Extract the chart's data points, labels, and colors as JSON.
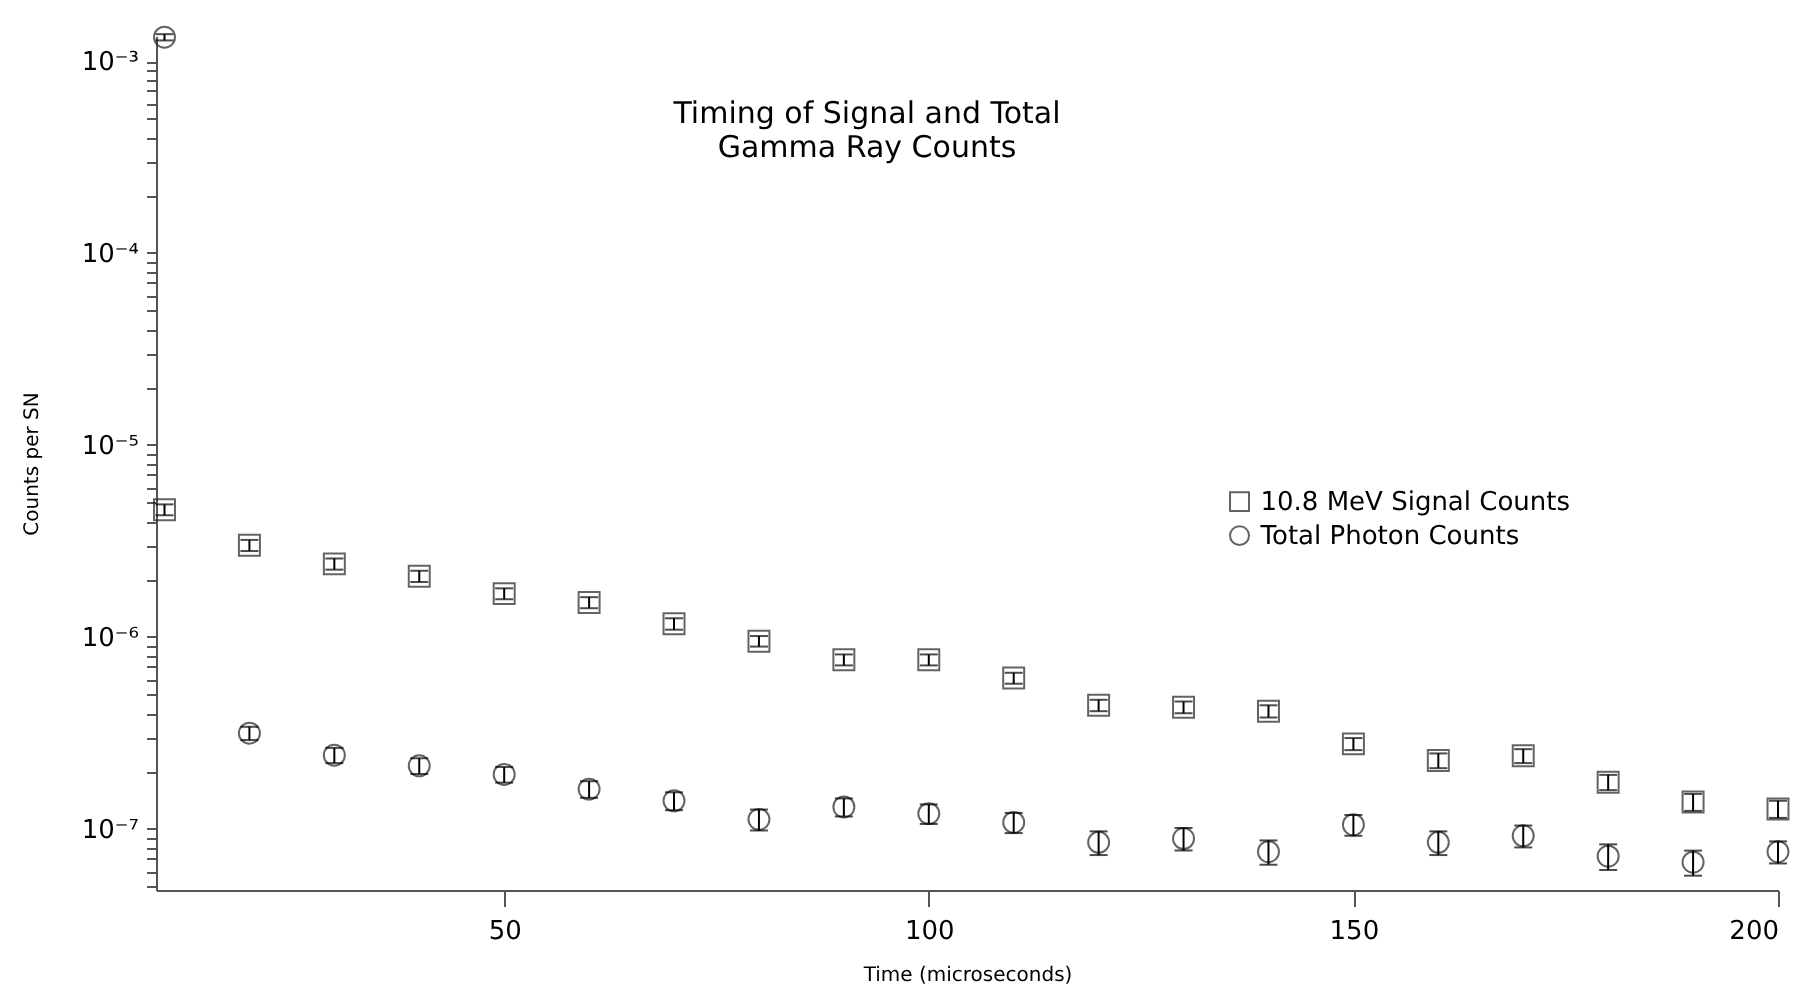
{
  "chart_data": {
    "type": "scatter",
    "title": [
      "Timing of Signal and Total",
      "Gamma Ray Counts"
    ],
    "xlabel": "Time (microseconds)",
    "ylabel": "Counts per SN",
    "x": [
      10,
      20,
      30,
      40,
      50,
      60,
      70,
      80,
      90,
      100,
      110,
      120,
      130,
      140,
      150,
      160,
      170,
      180,
      190,
      200
    ],
    "series": [
      {
        "name": "10.8 MeV Signal Counts",
        "color": "#222222",
        "marker": "square",
        "values": [
          4.6e-06,
          3e-06,
          2.4e-06,
          2.07e-06,
          1.68e-06,
          1.51e-06,
          1.17e-06,
          9.5e-07,
          7.6e-07,
          7.6e-07,
          6.1e-07,
          4.4e-07,
          4.3e-07,
          4.1e-07,
          2.77e-07,
          2.27e-07,
          2.4e-07,
          1.75e-07,
          1.38e-07,
          1.27e-07
        ],
        "errors": [
          3e-07,
          2e-07,
          1.6e-07,
          1.4e-07,
          1.1e-07,
          1e-07,
          8e-08,
          6e-08,
          5e-08,
          5e-08,
          4e-08,
          3e-08,
          3e-08,
          3e-08,
          2e-08,
          2e-08,
          2e-08,
          1.6e-08,
          1.4e-08,
          1.3e-08
        ]
      },
      {
        "name": "Total Photon Counts",
        "color": "#222222",
        "marker": "circle",
        "values": [
          0.00133,
          3.15e-07,
          2.42e-07,
          2.13e-07,
          1.92e-07,
          1.61e-07,
          1.4e-07,
          1.12e-07,
          1.3e-07,
          1.2e-07,
          1.08e-07,
          8.5e-08,
          8.9e-08,
          7.6e-08,
          1.05e-07,
          8.5e-08,
          9.2e-08,
          7.2e-08,
          6.7e-08,
          7.6e-08
        ],
        "errors": [
          5e-05,
          2.5e-08,
          2.2e-08,
          2e-08,
          1.8e-08,
          1.6e-08,
          1.5e-08,
          1.4e-08,
          1.4e-08,
          1.4e-08,
          1.3e-08,
          1.2e-08,
          1.2e-08,
          1.1e-08,
          1.3e-08,
          1.2e-08,
          1.2e-08,
          1.1e-08,
          1e-08,
          1e-08
        ]
      }
    ],
    "log": "y",
    "xlim": [
      9,
      200
    ],
    "ylim": [
      4.8e-08,
      0.00135
    ],
    "xticks": [
      50,
      100,
      150,
      200
    ],
    "yticks": [
      {
        "value": 1e-07,
        "label": "10⁻⁷"
      },
      {
        "value": 1e-06,
        "label": "10⁻⁶"
      },
      {
        "value": 1e-05,
        "label": "10⁻⁵"
      },
      {
        "value": 0.0001,
        "label": "10⁻⁴"
      },
      {
        "value": 0.001,
        "label": "10⁻³"
      },
      {
        "value": 5e-08,
        "label": null
      },
      {
        "value": 6e-08,
        "label": null
      },
      {
        "value": 7e-08,
        "label": null
      },
      {
        "value": 8e-08,
        "label": null
      },
      {
        "value": 9e-08,
        "label": null
      },
      {
        "value": 2e-07,
        "label": null
      },
      {
        "value": 3e-07,
        "label": null
      },
      {
        "value": 4e-07,
        "label": null
      },
      {
        "value": 5e-07,
        "label": null
      },
      {
        "value": 6e-07,
        "label": null
      },
      {
        "value": 7e-07,
        "label": null
      },
      {
        "value": 8e-07,
        "label": null
      },
      {
        "value": 9e-07,
        "label": null
      },
      {
        "value": 2e-06,
        "label": null
      },
      {
        "value": 3e-06,
        "label": null
      },
      {
        "value": 4e-06,
        "label": null
      },
      {
        "value": 5e-06,
        "label": null
      },
      {
        "value": 6e-06,
        "label": null
      },
      {
        "value": 7e-06,
        "label": null
      },
      {
        "value": 8e-06,
        "label": null
      },
      {
        "value": 9e-06,
        "label": null
      },
      {
        "value": 2e-05,
        "label": null
      },
      {
        "value": 3e-05,
        "label": null
      },
      {
        "value": 4e-05,
        "label": null
      },
      {
        "value": 5e-05,
        "label": null
      },
      {
        "value": 6e-05,
        "label": null
      },
      {
        "value": 7e-05,
        "label": null
      },
      {
        "value": 8e-05,
        "label": null
      },
      {
        "value": 9e-05,
        "label": null
      },
      {
        "value": 0.0002,
        "label": null
      },
      {
        "value": 0.0003,
        "label": null
      },
      {
        "value": 0.0004,
        "label": null
      },
      {
        "value": 0.0005,
        "label": null
      },
      {
        "value": 0.0006,
        "label": null
      },
      {
        "value": 0.0007,
        "label": null
      },
      {
        "value": 0.0008,
        "label": null
      },
      {
        "value": 0.0009,
        "label": null
      }
    ],
    "grid": false,
    "legend": "right"
  }
}
